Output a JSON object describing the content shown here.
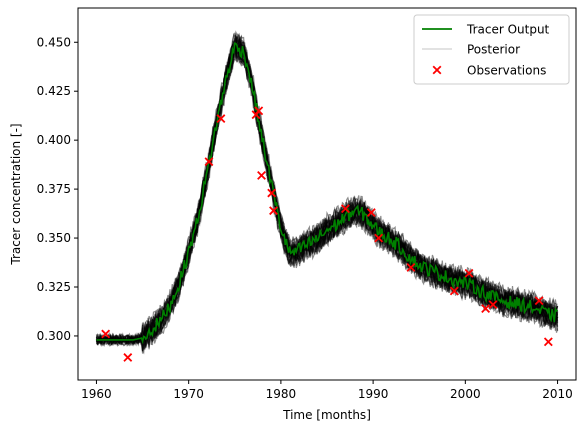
{
  "chart_data": {
    "type": "line",
    "xlabel": "Time [months]",
    "ylabel": "Tracer concentration [-]",
    "xlim": [
      1958,
      2012
    ],
    "ylim": [
      0.2775,
      0.4675
    ],
    "x_ticks": [
      1960,
      1970,
      1980,
      1990,
      2000,
      2010
    ],
    "y_ticks": [
      0.3,
      0.325,
      0.35,
      0.375,
      0.4,
      0.425,
      0.45
    ],
    "y_tick_labels": [
      "0.300",
      "0.325",
      "0.350",
      "0.375",
      "0.400",
      "0.425",
      "0.450"
    ],
    "grid": false,
    "legend_position": "top-right",
    "series": [
      {
        "name": "Tracer Output",
        "color": "#008000",
        "style": "line",
        "x": [
          1960,
          1962,
          1964,
          1965,
          1966,
          1967,
          1968,
          1969,
          1970,
          1971,
          1972,
          1973,
          1974,
          1975,
          1976,
          1977,
          1978,
          1979,
          1980,
          1981,
          1982,
          1983,
          1984,
          1985,
          1986,
          1987,
          1988,
          1989,
          1990,
          1991,
          1992,
          1993,
          1994,
          1995,
          1996,
          1997,
          1998,
          1999,
          2000,
          2001,
          2002,
          2003,
          2004,
          2005,
          2006,
          2007,
          2008,
          2009,
          2010
        ],
        "y": [
          0.298,
          0.298,
          0.298,
          0.299,
          0.303,
          0.308,
          0.316,
          0.327,
          0.343,
          0.36,
          0.383,
          0.408,
          0.43,
          0.448,
          0.445,
          0.425,
          0.4,
          0.377,
          0.355,
          0.342,
          0.344,
          0.347,
          0.35,
          0.354,
          0.357,
          0.361,
          0.364,
          0.362,
          0.356,
          0.352,
          0.349,
          0.345,
          0.34,
          0.336,
          0.334,
          0.332,
          0.33,
          0.328,
          0.327,
          0.325,
          0.322,
          0.32,
          0.318,
          0.317,
          0.316,
          0.315,
          0.313,
          0.311,
          0.31
        ]
      },
      {
        "name": "Posterior",
        "color": "#000000",
        "style": "band",
        "x": [
          1960,
          1962,
          1964,
          1965,
          1966,
          1967,
          1968,
          1969,
          1970,
          1971,
          1972,
          1973,
          1974,
          1975,
          1976,
          1977,
          1978,
          1979,
          1980,
          1981,
          1982,
          1983,
          1984,
          1985,
          1986,
          1987,
          1988,
          1989,
          1990,
          1991,
          1992,
          1993,
          1994,
          1995,
          1996,
          1997,
          1998,
          1999,
          2000,
          2001,
          2002,
          2003,
          2004,
          2005,
          2006,
          2007,
          2008,
          2009,
          2010
        ],
        "y": [
          0.298,
          0.298,
          0.298,
          0.299,
          0.303,
          0.308,
          0.316,
          0.327,
          0.343,
          0.36,
          0.383,
          0.408,
          0.43,
          0.448,
          0.445,
          0.425,
          0.4,
          0.377,
          0.355,
          0.342,
          0.344,
          0.347,
          0.35,
          0.354,
          0.357,
          0.361,
          0.364,
          0.362,
          0.356,
          0.352,
          0.349,
          0.345,
          0.34,
          0.336,
          0.334,
          0.332,
          0.33,
          0.328,
          0.327,
          0.325,
          0.322,
          0.32,
          0.318,
          0.317,
          0.316,
          0.315,
          0.313,
          0.311,
          0.31
        ],
        "spread": 0.006
      },
      {
        "name": "Observations",
        "color": "#ff0000",
        "style": "marker",
        "x": [
          1961,
          1963.4,
          1972.2,
          1973.5,
          1977.3,
          1977.6,
          1977.9,
          1979,
          1979.2,
          1987,
          1989.8,
          1990.6,
          1994.1,
          1998.8,
          2000.4,
          2002.2,
          2003,
          2008,
          2009
        ],
        "y": [
          0.301,
          0.289,
          0.389,
          0.411,
          0.413,
          0.415,
          0.382,
          0.373,
          0.364,
          0.365,
          0.363,
          0.35,
          0.335,
          0.323,
          0.332,
          0.314,
          0.316,
          0.318,
          0.297
        ]
      }
    ]
  }
}
